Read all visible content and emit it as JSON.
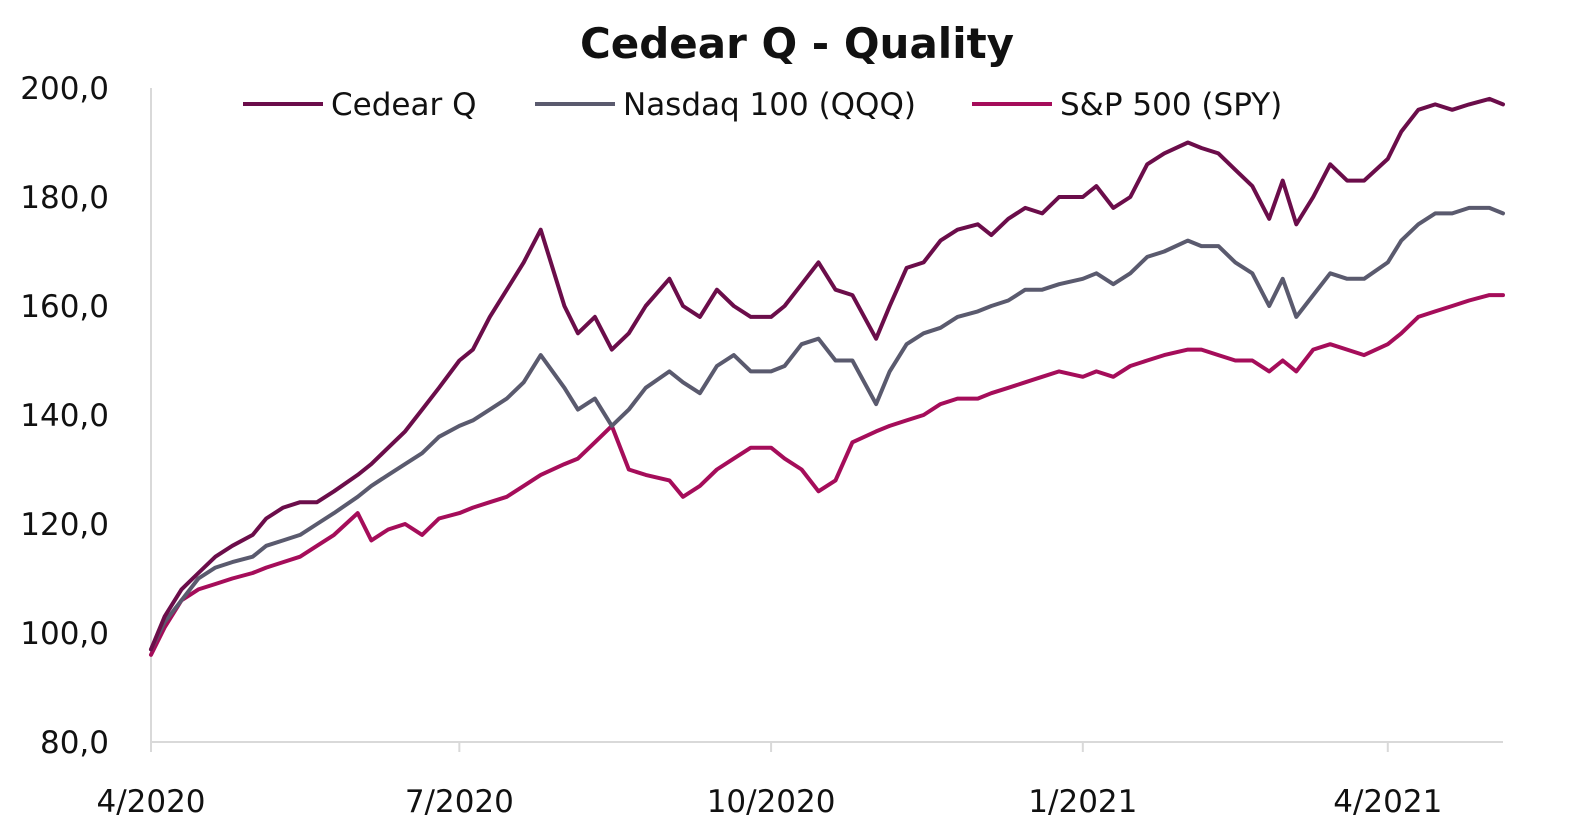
{
  "chart_data": {
    "type": "line",
    "title": "Cedear Q - Quality",
    "xlabel": "",
    "ylabel": "",
    "ylim": [
      80,
      200
    ],
    "y_ticks": [
      "200,0",
      "180,0",
      "160,0",
      "140,0",
      "120,0",
      "100,0",
      "80,0"
    ],
    "y_tick_values": [
      200,
      180,
      160,
      140,
      120,
      100,
      80
    ],
    "x_ticks": [
      "4/2020",
      "7/2020",
      "10/2020",
      "1/2021",
      "4/2021"
    ],
    "x_tick_dates": [
      "2020-04-01",
      "2020-07-01",
      "2020-10-01",
      "2021-01-01",
      "2021-04-01"
    ],
    "x_range": [
      "2020-04-01",
      "2021-05-05"
    ],
    "grid": false,
    "legend_position": "top",
    "series": [
      {
        "name": "Cedear Q",
        "color": "#6b0d4a",
        "x": [
          "2020-04-01",
          "2020-04-05",
          "2020-04-10",
          "2020-04-15",
          "2020-04-20",
          "2020-04-25",
          "2020-05-01",
          "2020-05-05",
          "2020-05-10",
          "2020-05-15",
          "2020-05-20",
          "2020-05-25",
          "2020-06-01",
          "2020-06-05",
          "2020-06-10",
          "2020-06-15",
          "2020-06-20",
          "2020-06-25",
          "2020-07-01",
          "2020-07-05",
          "2020-07-10",
          "2020-07-15",
          "2020-07-20",
          "2020-07-25",
          "2020-08-01",
          "2020-08-05",
          "2020-08-10",
          "2020-08-15",
          "2020-08-20",
          "2020-08-25",
          "2020-09-01",
          "2020-09-05",
          "2020-09-10",
          "2020-09-15",
          "2020-09-20",
          "2020-09-25",
          "2020-10-01",
          "2020-10-05",
          "2020-10-10",
          "2020-10-15",
          "2020-10-20",
          "2020-10-25",
          "2020-11-01",
          "2020-11-05",
          "2020-11-10",
          "2020-11-15",
          "2020-11-20",
          "2020-11-25",
          "2020-12-01",
          "2020-12-05",
          "2020-12-10",
          "2020-12-15",
          "2020-12-20",
          "2020-12-25",
          "2021-01-01",
          "2021-01-05",
          "2021-01-10",
          "2021-01-15",
          "2021-01-20",
          "2021-01-25",
          "2021-02-01",
          "2021-02-05",
          "2021-02-10",
          "2021-02-15",
          "2021-02-20",
          "2021-02-25",
          "2021-03-01",
          "2021-03-05",
          "2021-03-10",
          "2021-03-15",
          "2021-03-20",
          "2021-03-25",
          "2021-04-01",
          "2021-04-05",
          "2021-04-10",
          "2021-04-15",
          "2021-04-20",
          "2021-04-25",
          "2021-05-01",
          "2021-05-05"
        ],
        "values": [
          97,
          103,
          108,
          111,
          114,
          116,
          118,
          121,
          123,
          124,
          124,
          126,
          129,
          131,
          134,
          137,
          141,
          145,
          150,
          152,
          158,
          163,
          168,
          174,
          160,
          155,
          158,
          152,
          155,
          160,
          165,
          160,
          158,
          163,
          160,
          158,
          158,
          160,
          164,
          168,
          163,
          162,
          154,
          160,
          167,
          168,
          172,
          174,
          175,
          173,
          176,
          178,
          177,
          180,
          180,
          182,
          178,
          180,
          186,
          188,
          190,
          189,
          188,
          185,
          182,
          176,
          183,
          175,
          180,
          186,
          183,
          183,
          187,
          192,
          196,
          197,
          196,
          197,
          198,
          197
        ]
      },
      {
        "name": "Nasdaq 100 (QQQ)",
        "color": "#5a5a6e",
        "x": [
          "2020-04-01",
          "2020-04-05",
          "2020-04-10",
          "2020-04-15",
          "2020-04-20",
          "2020-04-25",
          "2020-05-01",
          "2020-05-05",
          "2020-05-10",
          "2020-05-15",
          "2020-05-20",
          "2020-05-25",
          "2020-06-01",
          "2020-06-05",
          "2020-06-10",
          "2020-06-15",
          "2020-06-20",
          "2020-06-25",
          "2020-07-01",
          "2020-07-05",
          "2020-07-10",
          "2020-07-15",
          "2020-07-20",
          "2020-07-25",
          "2020-08-01",
          "2020-08-05",
          "2020-08-10",
          "2020-08-15",
          "2020-08-20",
          "2020-08-25",
          "2020-09-01",
          "2020-09-05",
          "2020-09-10",
          "2020-09-15",
          "2020-09-20",
          "2020-09-25",
          "2020-10-01",
          "2020-10-05",
          "2020-10-10",
          "2020-10-15",
          "2020-10-20",
          "2020-10-25",
          "2020-11-01",
          "2020-11-05",
          "2020-11-10",
          "2020-11-15",
          "2020-11-20",
          "2020-11-25",
          "2020-12-01",
          "2020-12-05",
          "2020-12-10",
          "2020-12-15",
          "2020-12-20",
          "2020-12-25",
          "2021-01-01",
          "2021-01-05",
          "2021-01-10",
          "2021-01-15",
          "2021-01-20",
          "2021-01-25",
          "2021-02-01",
          "2021-02-05",
          "2021-02-10",
          "2021-02-15",
          "2021-02-20",
          "2021-02-25",
          "2021-03-01",
          "2021-03-05",
          "2021-03-10",
          "2021-03-15",
          "2021-03-20",
          "2021-03-25",
          "2021-04-01",
          "2021-04-05",
          "2021-04-10",
          "2021-04-15",
          "2021-04-20",
          "2021-04-25",
          "2021-05-01",
          "2021-05-05"
        ],
        "values": [
          97,
          102,
          106,
          110,
          112,
          113,
          114,
          116,
          117,
          118,
          120,
          122,
          125,
          127,
          129,
          131,
          133,
          136,
          138,
          139,
          141,
          143,
          146,
          151,
          145,
          141,
          143,
          138,
          141,
          145,
          148,
          146,
          144,
          149,
          151,
          148,
          148,
          149,
          153,
          154,
          150,
          150,
          142,
          148,
          153,
          155,
          156,
          158,
          159,
          160,
          161,
          163,
          163,
          164,
          165,
          166,
          164,
          166,
          169,
          170,
          172,
          171,
          171,
          168,
          166,
          160,
          165,
          158,
          162,
          166,
          165,
          165,
          168,
          172,
          175,
          177,
          177,
          178,
          178,
          177
        ]
      },
      {
        "name": "S&P 500 (SPY)",
        "color": "#a50d5a",
        "x": [
          "2020-04-01",
          "2020-04-05",
          "2020-04-10",
          "2020-04-15",
          "2020-04-20",
          "2020-04-25",
          "2020-05-01",
          "2020-05-05",
          "2020-05-10",
          "2020-05-15",
          "2020-05-20",
          "2020-05-25",
          "2020-06-01",
          "2020-06-05",
          "2020-06-10",
          "2020-06-15",
          "2020-06-20",
          "2020-06-25",
          "2020-07-01",
          "2020-07-05",
          "2020-07-10",
          "2020-07-15",
          "2020-07-20",
          "2020-07-25",
          "2020-08-01",
          "2020-08-05",
          "2020-08-10",
          "2020-08-15",
          "2020-08-20",
          "2020-08-25",
          "2020-09-01",
          "2020-09-05",
          "2020-09-10",
          "2020-09-15",
          "2020-09-20",
          "2020-09-25",
          "2020-10-01",
          "2020-10-05",
          "2020-10-10",
          "2020-10-15",
          "2020-10-20",
          "2020-10-25",
          "2020-11-01",
          "2020-11-05",
          "2020-11-10",
          "2020-11-15",
          "2020-11-20",
          "2020-11-25",
          "2020-12-01",
          "2020-12-05",
          "2020-12-10",
          "2020-12-15",
          "2020-12-20",
          "2020-12-25",
          "2021-01-01",
          "2021-01-05",
          "2021-01-10",
          "2021-01-15",
          "2021-01-20",
          "2021-01-25",
          "2021-02-01",
          "2021-02-05",
          "2021-02-10",
          "2021-02-15",
          "2021-02-20",
          "2021-02-25",
          "2021-03-01",
          "2021-03-05",
          "2021-03-10",
          "2021-03-15",
          "2021-03-20",
          "2021-03-25",
          "2021-04-01",
          "2021-04-05",
          "2021-04-10",
          "2021-04-15",
          "2021-04-20",
          "2021-04-25",
          "2021-05-01",
          "2021-05-05"
        ],
        "values": [
          96,
          101,
          106,
          108,
          109,
          110,
          111,
          112,
          113,
          114,
          116,
          118,
          122,
          117,
          119,
          120,
          118,
          121,
          122,
          123,
          124,
          125,
          127,
          129,
          131,
          132,
          135,
          138,
          130,
          129,
          128,
          125,
          127,
          130,
          132,
          134,
          134,
          132,
          130,
          126,
          128,
          135,
          137,
          138,
          139,
          140,
          142,
          143,
          143,
          144,
          145,
          146,
          147,
          148,
          147,
          148,
          147,
          149,
          150,
          151,
          152,
          152,
          151,
          150,
          150,
          148,
          150,
          148,
          152,
          153,
          152,
          151,
          153,
          155,
          158,
          159,
          160,
          161,
          162,
          162
        ]
      }
    ]
  }
}
